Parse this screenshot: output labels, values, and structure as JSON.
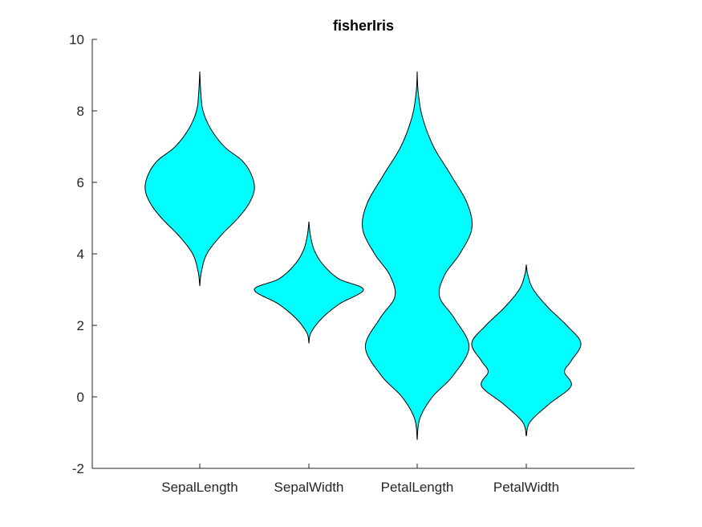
{
  "chart_data": {
    "type": "violin",
    "title": "fisherIris",
    "xlabel": "",
    "ylabel": "",
    "ylim": [
      -2,
      10
    ],
    "yticks": [
      -2,
      0,
      2,
      4,
      6,
      8,
      10
    ],
    "categories": [
      "SepalLength",
      "SepalWidth",
      "PetalLength",
      "PetalWidth"
    ],
    "grid": false,
    "fill_color": "#00ffff",
    "edge_color": "#000000",
    "series": [
      {
        "category": "SepalLength",
        "y_min": 3.1,
        "y_max": 9.1,
        "density_profile": [
          [
            3.1,
            0.0
          ],
          [
            3.5,
            0.03
          ],
          [
            4.0,
            0.13
          ],
          [
            4.5,
            0.38
          ],
          [
            5.0,
            0.7
          ],
          [
            5.4,
            0.9
          ],
          [
            5.8,
            1.0
          ],
          [
            6.2,
            0.95
          ],
          [
            6.6,
            0.78
          ],
          [
            7.0,
            0.45
          ],
          [
            7.5,
            0.2
          ],
          [
            8.0,
            0.06
          ],
          [
            8.5,
            0.02
          ],
          [
            9.1,
            0.0
          ]
        ]
      },
      {
        "category": "SepalWidth",
        "y_min": 1.5,
        "y_max": 4.9,
        "density_profile": [
          [
            1.5,
            0.0
          ],
          [
            1.8,
            0.04
          ],
          [
            2.2,
            0.24
          ],
          [
            2.6,
            0.56
          ],
          [
            3.0,
            1.0
          ],
          [
            3.3,
            0.55
          ],
          [
            3.7,
            0.26
          ],
          [
            4.1,
            0.1
          ],
          [
            4.5,
            0.03
          ],
          [
            4.9,
            0.0
          ]
        ]
      },
      {
        "category": "PetalLength",
        "y_min": -1.2,
        "y_max": 9.1,
        "density_profile": [
          [
            -1.2,
            0.0
          ],
          [
            -0.6,
            0.05
          ],
          [
            0.0,
            0.28
          ],
          [
            0.6,
            0.66
          ],
          [
            1.4,
            0.95
          ],
          [
            2.2,
            0.68
          ],
          [
            2.8,
            0.41
          ],
          [
            3.4,
            0.5
          ],
          [
            4.0,
            0.78
          ],
          [
            4.7,
            1.0
          ],
          [
            5.4,
            0.92
          ],
          [
            6.2,
            0.62
          ],
          [
            7.0,
            0.3
          ],
          [
            7.8,
            0.1
          ],
          [
            8.5,
            0.02
          ],
          [
            9.1,
            0.0
          ]
        ]
      },
      {
        "category": "PetalWidth",
        "y_min": -1.1,
        "y_max": 3.7,
        "density_profile": [
          [
            -1.1,
            0.0
          ],
          [
            -0.7,
            0.07
          ],
          [
            -0.2,
            0.42
          ],
          [
            0.3,
            0.82
          ],
          [
            0.7,
            0.7
          ],
          [
            1.0,
            0.82
          ],
          [
            1.5,
            1.0
          ],
          [
            2.0,
            0.74
          ],
          [
            2.5,
            0.4
          ],
          [
            3.0,
            0.13
          ],
          [
            3.4,
            0.03
          ],
          [
            3.7,
            0.0
          ]
        ]
      }
    ]
  }
}
